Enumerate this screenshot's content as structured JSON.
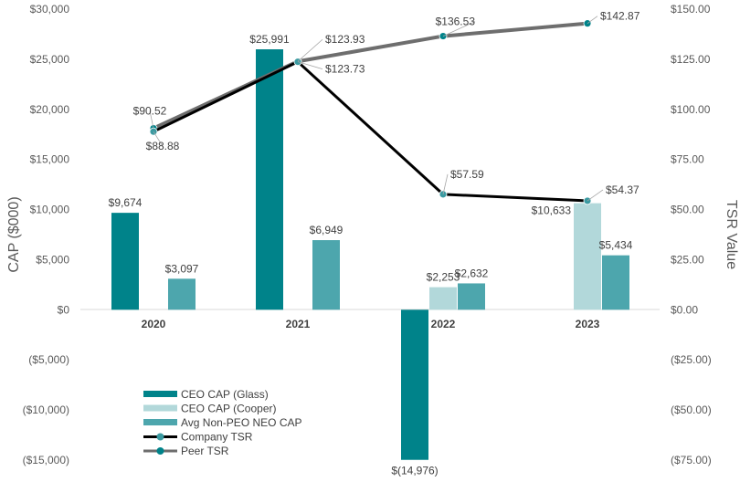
{
  "chart_data": {
    "type": "bar",
    "categories": [
      "2020",
      "2021",
      "2022",
      "2023"
    ],
    "left_axis": {
      "label": "CAP ($000)",
      "range": [
        -15000,
        30000
      ],
      "ticks": [
        30000,
        25000,
        20000,
        15000,
        10000,
        5000,
        0,
        -5000,
        -10000,
        -15000
      ],
      "tick_labels": [
        "$30,000",
        "$25,000",
        "$20,000",
        "$15,000",
        "$10,000",
        "$5,000",
        "$0",
        "($5,000)",
        "($10,000)",
        "($15,000)"
      ]
    },
    "right_axis": {
      "label": "TSR Value",
      "range": [
        -75,
        150
      ],
      "ticks": [
        150,
        125,
        100,
        75,
        50,
        25,
        0,
        -25,
        -50,
        -75
      ],
      "tick_labels": [
        "$150.00",
        "$125.00",
        "$100.00",
        "$75.00",
        "$50.00",
        "$25.00",
        "$0.00",
        "($25.00)",
        "($50.00)",
        "($75.00)"
      ]
    },
    "bar_series": [
      {
        "name": "CEO CAP (Glass)",
        "color": "#00838a",
        "slot": 0,
        "values": [
          9674,
          25991,
          -14976,
          null
        ],
        "labels": [
          "$9,674",
          "$25,991",
          "$(14,976)",
          null
        ]
      },
      {
        "name": "CEO CAP (Cooper)",
        "color": "#b2d8da",
        "slot": 1,
        "values": [
          null,
          null,
          2253,
          10633
        ],
        "labels": [
          null,
          null,
          "$2,253",
          "$10,633"
        ]
      },
      {
        "name": "Avg Non-PEO NEO CAP",
        "color": "#4da6ad",
        "slot": 2,
        "values": [
          3097,
          6949,
          2632,
          5434
        ],
        "labels": [
          "$3,097",
          "$6,949",
          "$2,632",
          "$5,434"
        ]
      }
    ],
    "line_series": [
      {
        "name": "Company TSR",
        "color": "#000000",
        "marker": "#3a9aa1",
        "values": [
          88.88,
          123.73,
          57.59,
          54.37
        ],
        "labels": [
          "$88.88",
          "$123.73",
          "$57.59",
          "$54.37"
        ]
      },
      {
        "name": "Peer TSR",
        "color": "#6e6e6e",
        "marker": "#00838a",
        "values": [
          90.52,
          123.93,
          136.53,
          142.87
        ],
        "labels": [
          "$90.52",
          "$123.93",
          "$136.53",
          "$142.87"
        ]
      }
    ],
    "legend_position": "bottom-center",
    "grid": false
  }
}
